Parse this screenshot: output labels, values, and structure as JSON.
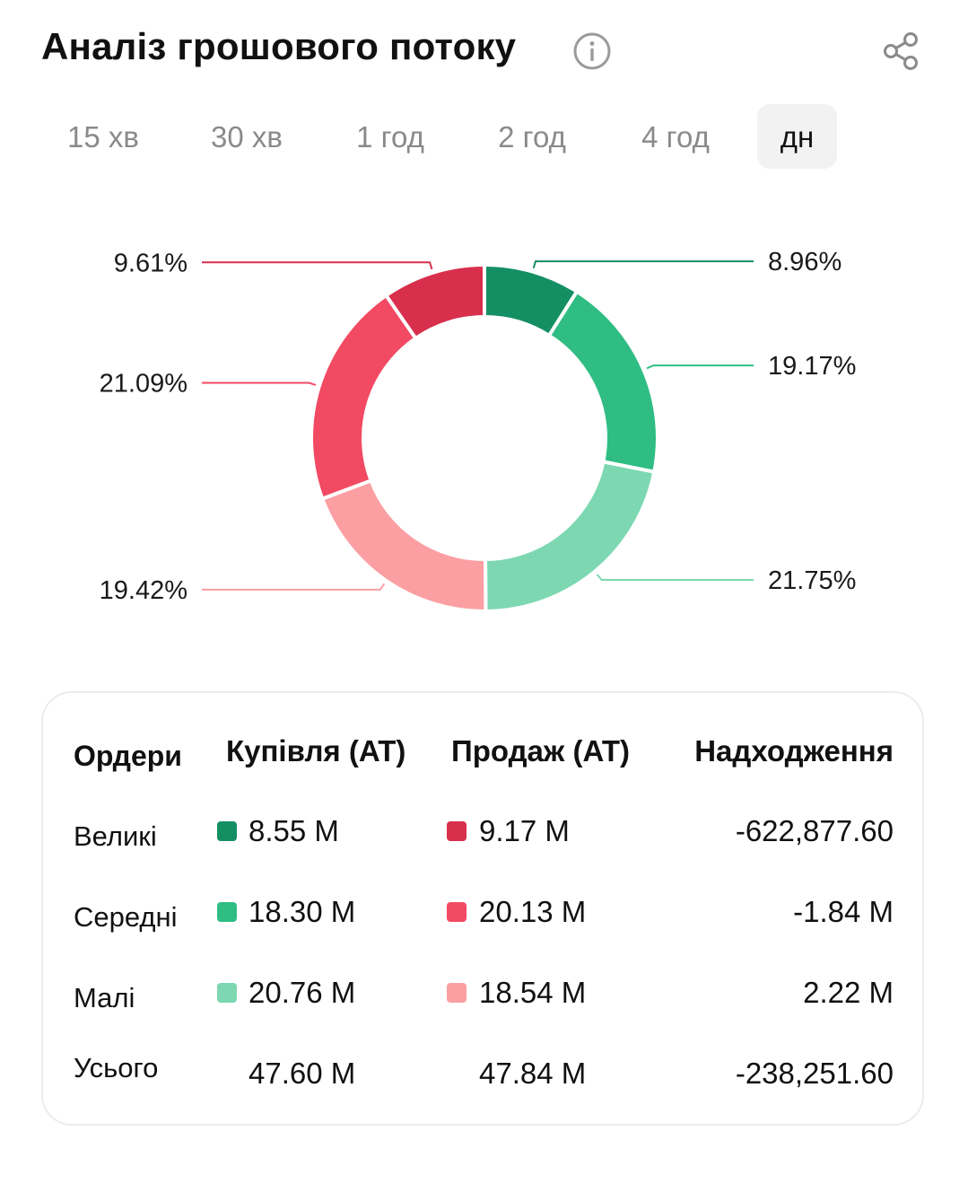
{
  "header": {
    "title": "Аналіз грошового потоку",
    "info_icon": "info-icon",
    "share_icon": "share-icon"
  },
  "tabs": [
    {
      "label": "15 хв",
      "active": false
    },
    {
      "label": "30 хв",
      "active": false
    },
    {
      "label": "1 год",
      "active": false
    },
    {
      "label": "2 год",
      "active": false
    },
    {
      "label": "4 год",
      "active": false
    },
    {
      "label": "дн",
      "active": true
    }
  ],
  "colors": {
    "buy_large": "#148f63",
    "buy_medium": "#2fbd84",
    "buy_small": "#7dd8b1",
    "sell_large": "#d82f4d",
    "sell_medium": "#f24a62",
    "sell_small": "#fb9fa3"
  },
  "chart_data": {
    "type": "pie",
    "slices": [
      {
        "label": "8.96%",
        "value": 8.96,
        "color": "#148f63"
      },
      {
        "label": "19.17%",
        "value": 19.17,
        "color": "#2fbd84"
      },
      {
        "label": "21.75%",
        "value": 21.75,
        "color": "#7dd8b1"
      },
      {
        "label": "19.42%",
        "value": 19.42,
        "color": "#fb9fa3"
      },
      {
        "label": "21.09%",
        "value": 21.09,
        "color": "#f24a62"
      },
      {
        "label": "9.61%",
        "value": 9.61,
        "color": "#d82f4d"
      }
    ]
  },
  "table": {
    "headers": [
      "Ордери",
      "Купівля (AT)",
      "Продаж (AT)",
      "Надходження"
    ],
    "rows": [
      {
        "label": "Великі",
        "buy": "8.55 M",
        "sell": "9.17 M",
        "net": "-622,877.60",
        "buy_color": "#148f63",
        "sell_color": "#d82f4d"
      },
      {
        "label": "Середні",
        "buy": "18.30 M",
        "sell": "20.13 M",
        "net": "-1.84 M",
        "buy_color": "#2fbd84",
        "sell_color": "#f24a62"
      },
      {
        "label": "Малі",
        "buy": "20.76 M",
        "sell": "18.54 M",
        "net": "2.22 M",
        "buy_color": "#7dd8b1",
        "sell_color": "#fb9fa3"
      },
      {
        "label": "Усього",
        "buy": "47.60 M",
        "sell": "47.84 M",
        "net": "-238,251.60"
      }
    ]
  }
}
